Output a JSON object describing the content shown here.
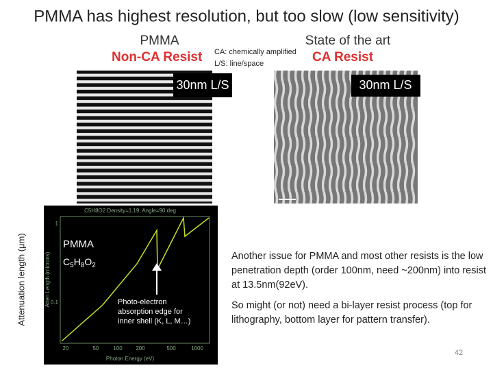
{
  "title": "PMMA has highest resolution, but too slow (low sensitivity)",
  "left": {
    "header": "PMMA",
    "subheader": "Non-CA Resist",
    "image_label": "30nm L/S"
  },
  "right": {
    "header": "State of the art",
    "subheader": "CA Resist",
    "image_label": "30nm L/S"
  },
  "notes": [
    "CA: chemically amplified",
    "L/S:  line/space"
  ],
  "plot": {
    "title": "C5H8O2 Density=1.19, Angle=90.deg",
    "xlabel": "Photon Energy (eV)",
    "ylabel": "Atten Length (microns)",
    "xticks": [
      "20",
      "50",
      "100",
      "200",
      "500",
      "1000"
    ],
    "yticks": [
      "1",
      "0.1"
    ],
    "outer_ylabel": "Attenuation length (μm)",
    "material": "PMMA",
    "formula": [
      "C",
      "5",
      "H",
      "8",
      "O",
      "2"
    ],
    "annotation": [
      "Photo-electron",
      "absorption edge for",
      "inner shell (K, L, M…)"
    ]
  },
  "paragraphs": [
    "Another issue for  PMMA and most other resists is the low penetration depth (order 100nm, need ~200nm) into resist at 13.5nm(92eV).",
    "So might (or not) need a bi-layer resist process (top for lithography, bottom layer for pattern transfer)."
  ],
  "page_number": "42"
}
